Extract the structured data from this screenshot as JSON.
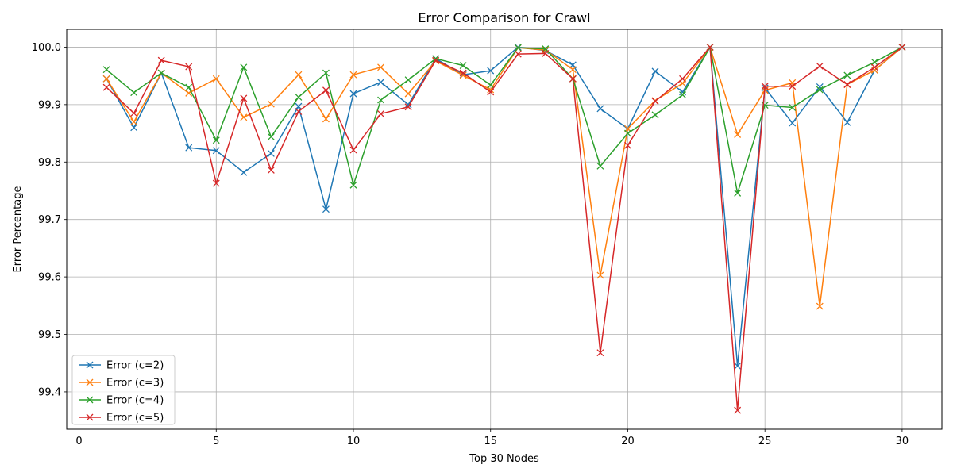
{
  "chart_data": {
    "type": "line",
    "title": "Error Comparison for Crawl",
    "xlabel": "Top 30 Nodes",
    "ylabel": "Error Percentage",
    "xlim": [
      -0.45,
      31.45
    ],
    "ylim": [
      99.335,
      100.031
    ],
    "xticks": [
      0,
      5,
      10,
      15,
      20,
      25,
      30
    ],
    "yticks": [
      99.4,
      99.5,
      99.6,
      99.7,
      99.8,
      99.9,
      100.0
    ],
    "grid": true,
    "legend_position": "lower-left",
    "marker": "x",
    "x": [
      1,
      2,
      3,
      4,
      5,
      6,
      7,
      8,
      9,
      10,
      11,
      12,
      13,
      14,
      15,
      16,
      17,
      18,
      19,
      20,
      21,
      22,
      23,
      24,
      25,
      26,
      27,
      28,
      29,
      30
    ],
    "series": [
      {
        "name": "Error (c=2)",
        "color": "#1f77b4",
        "values": [
          99.945,
          99.86,
          99.955,
          99.825,
          99.82,
          99.782,
          99.815,
          99.897,
          99.718,
          99.919,
          99.939,
          99.9,
          99.98,
          99.952,
          99.959,
          100.0,
          99.994,
          99.969,
          99.893,
          99.858,
          99.958,
          99.922,
          100.0,
          99.445,
          99.929,
          99.868,
          99.931,
          99.869,
          99.96,
          100.0
        ]
      },
      {
        "name": "Error (c=3)",
        "color": "#ff7f0e",
        "values": [
          99.945,
          99.87,
          99.955,
          99.92,
          99.945,
          99.878,
          99.901,
          99.952,
          99.875,
          99.952,
          99.965,
          99.919,
          99.976,
          99.951,
          99.926,
          99.999,
          99.995,
          99.961,
          99.603,
          99.858,
          99.907,
          99.937,
          100.0,
          99.848,
          99.925,
          99.938,
          99.549,
          99.935,
          99.96,
          100.0
        ]
      },
      {
        "name": "Error (c=4)",
        "color": "#2ca02c",
        "values": [
          99.961,
          99.921,
          99.955,
          99.93,
          99.838,
          99.965,
          99.844,
          99.913,
          99.955,
          99.76,
          99.908,
          99.943,
          99.98,
          99.968,
          99.934,
          99.999,
          99.997,
          99.945,
          99.793,
          99.85,
          99.882,
          99.917,
          100.0,
          99.746,
          99.899,
          99.895,
          99.926,
          99.951,
          99.974,
          100.0
        ]
      },
      {
        "name": "Error (c=5)",
        "color": "#d62728",
        "values": [
          99.93,
          99.885,
          99.977,
          99.966,
          99.763,
          99.911,
          99.786,
          99.888,
          99.925,
          99.821,
          99.884,
          99.896,
          99.977,
          99.955,
          99.922,
          99.988,
          99.989,
          99.945,
          99.468,
          99.829,
          99.906,
          99.945,
          100.0,
          99.368,
          99.932,
          99.932,
          99.967,
          99.935,
          99.965,
          100.0
        ]
      }
    ]
  }
}
